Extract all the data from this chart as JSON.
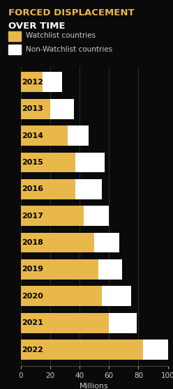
{
  "title_line1": "FORCED DISPLACEMENT",
  "title_line2": "OVER TIME",
  "years": [
    "2012",
    "2013",
    "2014",
    "2015",
    "2016",
    "2017",
    "2018",
    "2019",
    "2020",
    "2021",
    "2022"
  ],
  "watchlist": [
    15,
    20,
    32,
    37,
    37,
    43,
    50,
    53,
    55,
    60,
    83
  ],
  "non_watchlist": [
    13,
    16,
    14,
    20,
    18,
    17,
    17,
    16,
    20,
    19,
    17
  ],
  "watchlist_color": "#E8B84B",
  "non_watchlist_color": "#FFFFFF",
  "background_color": "#0A0A0A",
  "title_color1": "#E8B84B",
  "title_color2": "#FFFFFF",
  "label_color": "#CCCCCC",
  "bar_label_color": "#000000",
  "xlim": [
    0,
    100
  ],
  "xlabel": "Millions",
  "xticks": [
    0,
    20,
    40,
    60,
    80,
    100
  ],
  "legend_watchlist": "Watchlist countries",
  "legend_non_watchlist": "Non-Watchlist countries",
  "figsize": [
    2.48,
    5.58
  ],
  "dpi": 100
}
